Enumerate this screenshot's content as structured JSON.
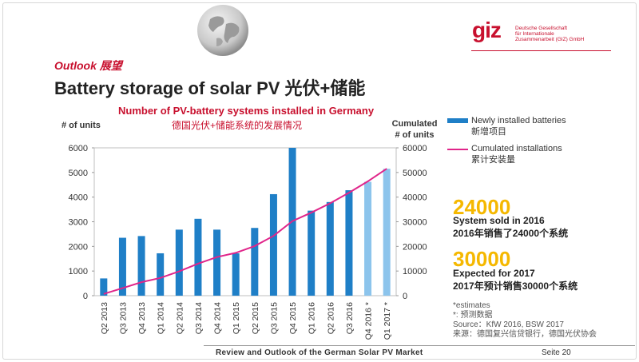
{
  "header": {
    "section": "Outlook 展望",
    "title": "Battery storage of solar PV 光伏+储能",
    "logo_mark": "giz",
    "logo_text": [
      "Deutsche Gesellschaft",
      "für Internationale",
      "Zusammenarbeit (GIZ) GmbH"
    ]
  },
  "chart_data": {
    "type": "bar",
    "title": "Number of PV-battery systems installed in Germany",
    "title_zh": "德国光伏+储能系统的发展情况",
    "ylabel": "# of units",
    "ylabel_right": [
      "Cumulated",
      "# of units"
    ],
    "ylim": [
      0,
      6000
    ],
    "ylim_right": [
      0,
      60000
    ],
    "yticks": [
      0,
      1000,
      2000,
      3000,
      4000,
      5000,
      6000
    ],
    "yticks_right": [
      0,
      10000,
      20000,
      30000,
      40000,
      50000,
      60000
    ],
    "categories": [
      "Q2 2013",
      "Q3 2013",
      "Q4 2013",
      "Q1 2014",
      "Q2 2014",
      "Q3 2014",
      "Q4 2014",
      "Q1 2015",
      "Q2 2015",
      "Q3 2015",
      "Q4 2015",
      "Q1 2016",
      "Q2 2016",
      "Q3 2016",
      "Q4 2016 *",
      "Q1 2017 *"
    ],
    "series": [
      {
        "name": "Newly installed batteries",
        "name_zh": "新增项目",
        "color": "#1f7fc7",
        "estimate_color": "#8cc4ec",
        "values": [
          700,
          2350,
          2420,
          1720,
          2680,
          3120,
          2680,
          1720,
          2750,
          4120,
          6000,
          3450,
          3800,
          4280,
          4620,
          5150
        ],
        "estimate": [
          false,
          false,
          false,
          false,
          false,
          false,
          false,
          false,
          false,
          false,
          false,
          false,
          false,
          false,
          true,
          true
        ]
      },
      {
        "name": "Cumulated installations",
        "name_zh": "累计安装量",
        "type": "line",
        "axis": "right",
        "color": "#e0258a",
        "values": [
          700,
          3050,
          5470,
          7190,
          9870,
          12990,
          15670,
          17390,
          20140,
          24260,
          30260,
          33710,
          37510,
          41790,
          46410,
          51560
        ]
      }
    ]
  },
  "highlights": [
    {
      "value": "24000",
      "line1": "System sold in 2016",
      "line2": "2016年销售了24000个系统"
    },
    {
      "value": "30000",
      "line1": "Expected for 2017",
      "line2": "2017年预计销售30000个系统"
    }
  ],
  "notes": [
    "*estimates",
    "*: 预测数据",
    "Source：KfW 2016, BSW 2017",
    "来源：德国复兴信贷银行，德国光伏协会"
  ],
  "footer": {
    "text": "Review and Outlook of the German Solar PV Market",
    "page": "Seite 20"
  }
}
